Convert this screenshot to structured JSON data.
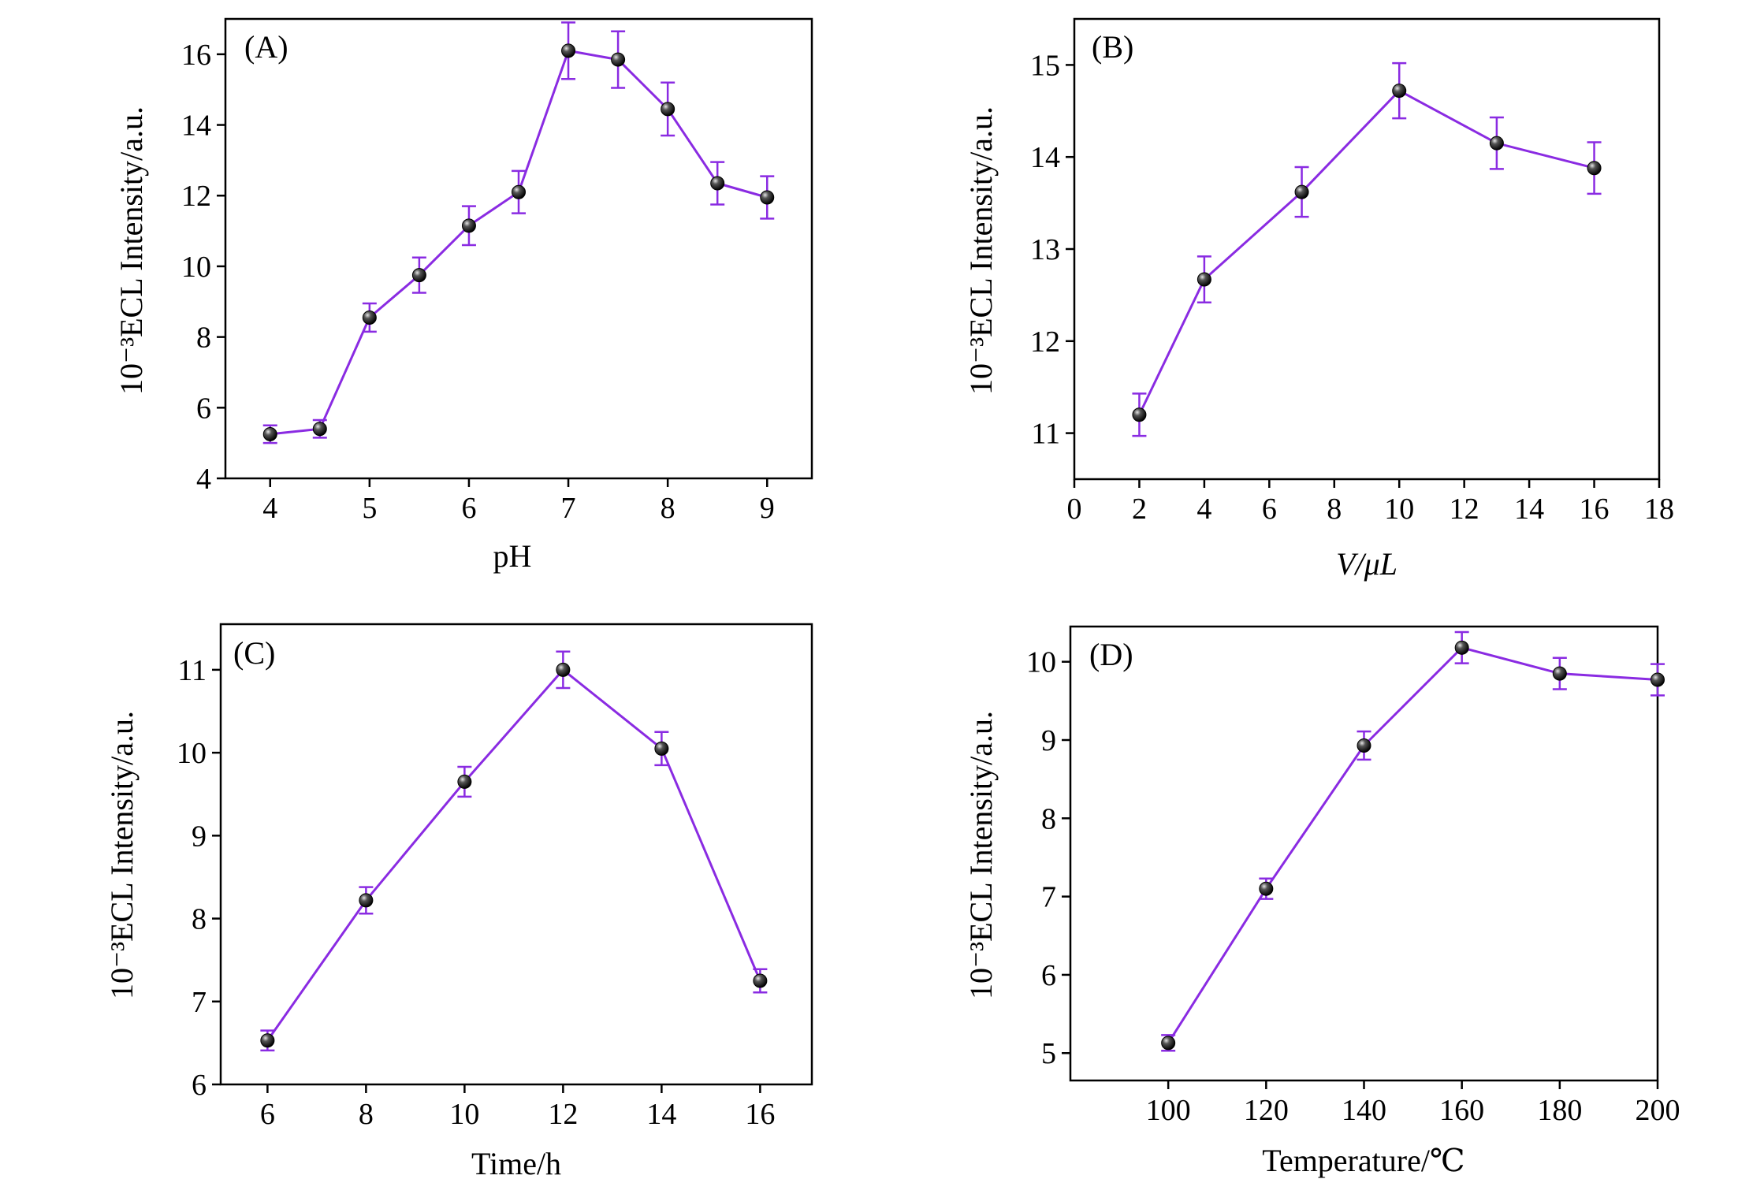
{
  "figure": {
    "line_color": "#8a2be2",
    "marker_color": "#111111",
    "axis_color": "#000000"
  },
  "chart_data": [
    {
      "type": "line",
      "panel_label": "(A)",
      "xlabel": "pH",
      "ylabel": "10⁻³ECL Intensity/a.u.",
      "xlim": [
        3.55,
        9.45
      ],
      "ylim": [
        4,
        17
      ],
      "xticks": [
        4,
        5,
        6,
        7,
        8,
        9
      ],
      "yticks": [
        4,
        6,
        8,
        10,
        12,
        14,
        16
      ],
      "x": [
        4,
        4.5,
        5,
        5.5,
        6,
        6.5,
        7,
        7.5,
        8,
        8.5,
        9
      ],
      "y": [
        5.25,
        5.4,
        8.55,
        9.75,
        11.15,
        12.1,
        16.1,
        15.85,
        14.45,
        12.35,
        11.95
      ],
      "error": [
        0.25,
        0.25,
        0.4,
        0.5,
        0.55,
        0.6,
        0.8,
        0.8,
        0.75,
        0.6,
        0.6
      ]
    },
    {
      "type": "line",
      "panel_label": "(B)",
      "xlabel": "V/μL",
      "ylabel": "10⁻³ECL Intensity/a.u.",
      "xlim": [
        0,
        18
      ],
      "ylim": [
        10.5,
        15.5
      ],
      "xticks": [
        0,
        2,
        4,
        6,
        8,
        10,
        12,
        14,
        16,
        18
      ],
      "yticks": [
        11,
        12,
        13,
        14,
        15
      ],
      "x": [
        2,
        4,
        7,
        10,
        13,
        16
      ],
      "y": [
        11.2,
        12.67,
        13.62,
        14.72,
        14.15,
        13.88
      ],
      "error": [
        0.23,
        0.25,
        0.27,
        0.3,
        0.28,
        0.28
      ]
    },
    {
      "type": "line",
      "panel_label": "(C)",
      "xlabel": "Time/h",
      "ylabel": "10⁻³ECL Intensity/a.u.",
      "xlim": [
        5.05,
        17.05
      ],
      "ylim": [
        6,
        11.55
      ],
      "xticks": [
        6,
        8,
        10,
        12,
        14,
        16
      ],
      "yticks": [
        6,
        7,
        8,
        9,
        10,
        11
      ],
      "x": [
        6,
        8,
        10,
        12,
        14,
        16
      ],
      "y": [
        6.53,
        8.22,
        9.65,
        11.0,
        10.05,
        7.25
      ],
      "error": [
        0.12,
        0.16,
        0.18,
        0.22,
        0.2,
        0.14
      ]
    },
    {
      "type": "line",
      "panel_label": "(D)",
      "xlabel": "Temperature/℃",
      "ylabel": "10⁻³ECL Intensity/a.u.",
      "xlim": [
        80,
        200
      ],
      "ylim": [
        4.65,
        10.45
      ],
      "xticks": [
        100,
        120,
        140,
        160,
        180,
        200
      ],
      "yticks": [
        5,
        6,
        7,
        8,
        9,
        10
      ],
      "x": [
        100,
        120,
        140,
        160,
        180,
        200
      ],
      "y": [
        5.13,
        7.1,
        8.93,
        10.18,
        9.85,
        9.77
      ],
      "error": [
        0.1,
        0.13,
        0.18,
        0.2,
        0.2,
        0.2
      ]
    }
  ]
}
